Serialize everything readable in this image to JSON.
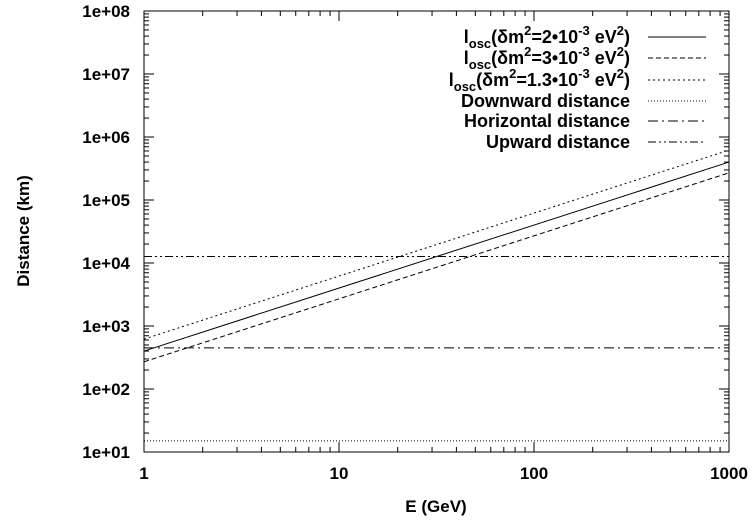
{
  "chart_data": {
    "type": "line",
    "xlabel": "E (GeV)",
    "ylabel": "Distance (km)",
    "x_scale": "log",
    "y_scale": "log",
    "xlim": [
      1,
      1000
    ],
    "ylim": [
      10,
      100000000
    ],
    "grid": false,
    "legend_position": "top-right",
    "x_ticks": [
      {
        "value": 1,
        "label": "1"
      },
      {
        "value": 10,
        "label": "10"
      },
      {
        "value": 100,
        "label": "100"
      },
      {
        "value": 1000,
        "label": "1000"
      }
    ],
    "y_ticks": [
      {
        "value": 10,
        "label": "1e+01"
      },
      {
        "value": 100,
        "label": "1e+02"
      },
      {
        "value": 1000,
        "label": "1e+03"
      },
      {
        "value": 10000,
        "label": "1e+04"
      },
      {
        "value": 100000,
        "label": "1e+05"
      },
      {
        "value": 1000000,
        "label": "1e+06"
      },
      {
        "value": 10000000,
        "label": "1e+07"
      },
      {
        "value": 100000000,
        "label": "1e+08"
      }
    ],
    "series": [
      {
        "legend": {
          "base": "l",
          "sub": "osc",
          "mid": "(δm",
          "sup": "2",
          "tail": "=2•10",
          "sup2": "-3",
          "unit": " eV",
          "sup3": "2",
          "close": ")"
        },
        "style": "solid",
        "x": [
          1,
          1000
        ],
        "y": [
          400,
          400000
        ]
      },
      {
        "legend": {
          "base": "l",
          "sub": "osc",
          "mid": "(δm",
          "sup": "2",
          "tail": "=3•10",
          "sup2": "-3",
          "unit": " eV",
          "sup3": "2",
          "close": ")"
        },
        "style": "dashed",
        "x": [
          1,
          1000
        ],
        "y": [
          270,
          270000
        ]
      },
      {
        "legend": {
          "base": "l",
          "sub": "osc",
          "mid": "(δm",
          "sup": "2",
          "tail": "=1.3•10",
          "sup2": "-3",
          "unit": " eV",
          "sup3": "2",
          "close": ")"
        },
        "style": "dotted",
        "x": [
          1,
          1000
        ],
        "y": [
          620,
          620000
        ]
      },
      {
        "name": "Downward distance",
        "style": "fine-dotted",
        "x": [
          1,
          1000
        ],
        "y": [
          15,
          15
        ]
      },
      {
        "name": "Horizontal distance",
        "style": "dash-dot",
        "x": [
          1,
          1000
        ],
        "y": [
          450,
          450
        ]
      },
      {
        "name": "Upward distance",
        "style": "dash-dot-dot",
        "x": [
          1,
          1000
        ],
        "y": [
          12700,
          12700
        ]
      }
    ]
  }
}
